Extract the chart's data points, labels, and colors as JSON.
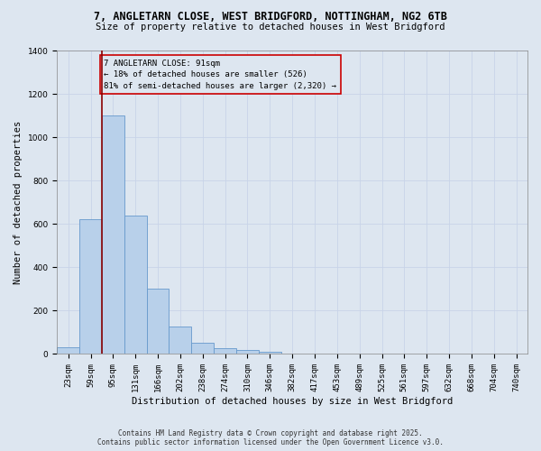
{
  "title_line1": "7, ANGLETARN CLOSE, WEST BRIDGFORD, NOTTINGHAM, NG2 6TB",
  "title_line2": "Size of property relative to detached houses in West Bridgford",
  "xlabel": "Distribution of detached houses by size in West Bridgford",
  "ylabel": "Number of detached properties",
  "categories": [
    "23sqm",
    "59sqm",
    "95sqm",
    "131sqm",
    "166sqm",
    "202sqm",
    "238sqm",
    "274sqm",
    "310sqm",
    "346sqm",
    "382sqm",
    "417sqm",
    "453sqm",
    "489sqm",
    "525sqm",
    "561sqm",
    "597sqm",
    "632sqm",
    "668sqm",
    "704sqm",
    "740sqm"
  ],
  "values": [
    30,
    620,
    1100,
    640,
    300,
    125,
    50,
    25,
    20,
    10,
    0,
    0,
    0,
    0,
    0,
    0,
    0,
    0,
    0,
    0,
    0
  ],
  "bar_color": "#b8d0ea",
  "bar_edge_color": "#6699cc",
  "grid_color": "#c8d4e8",
  "background_color": "#dde6f0",
  "vline_color": "#8b0000",
  "annotation_text": "7 ANGLETARN CLOSE: 91sqm\n← 18% of detached houses are smaller (526)\n81% of semi-detached houses are larger (2,320) →",
  "annotation_box_facecolor": "#dde6f0",
  "annotation_box_edgecolor": "#cc0000",
  "footer_line1": "Contains HM Land Registry data © Crown copyright and database right 2025.",
  "footer_line2": "Contains public sector information licensed under the Open Government Licence v3.0.",
  "ylim": [
    0,
    1400
  ],
  "yticks": [
    0,
    200,
    400,
    600,
    800,
    1000,
    1200,
    1400
  ],
  "title_fontsize": 8.5,
  "subtitle_fontsize": 7.5,
  "axis_label_fontsize": 7.5,
  "tick_fontsize": 6.5,
  "annotation_fontsize": 6.5,
  "footer_fontsize": 5.5
}
